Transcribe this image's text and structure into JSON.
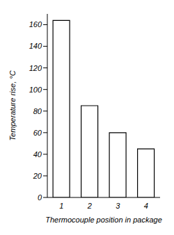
{
  "chart_data": {
    "type": "bar",
    "xlabel": "Thermocouple position in package",
    "ylabel": "Temperature rise, °C",
    "categories": [
      "1",
      "2",
      "3",
      "4"
    ],
    "values": [
      164,
      85,
      60,
      45
    ],
    "color": "#ffffff",
    "ylim": [
      0,
      170
    ],
    "yticks": [
      0,
      20,
      40,
      60,
      80,
      100,
      120,
      140,
      160
    ],
    "grid": false
  }
}
